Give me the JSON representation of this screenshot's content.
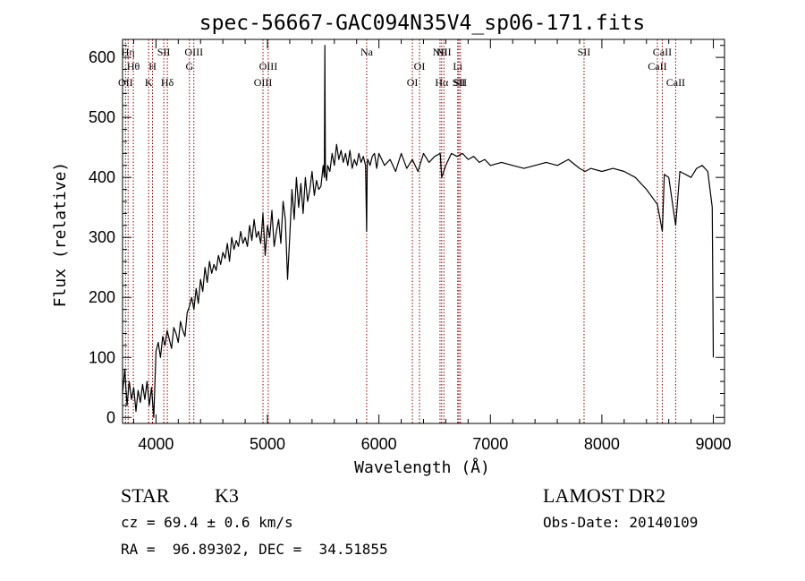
{
  "chart_data": {
    "type": "line",
    "title": "spec-56667-GAC094N35V4_sp06-171.fits",
    "xlabel": "Wavelength (Å)",
    "ylabel": "Flux (relative)",
    "xlim": [
      3700,
      9100
    ],
    "ylim": [
      -10,
      630
    ],
    "xticks": [
      4000,
      5000,
      6000,
      7000,
      8000,
      9000
    ],
    "yticks": [
      0,
      100,
      200,
      300,
      400,
      500,
      600
    ],
    "grid": false,
    "line_color": "#000000",
    "marker_color": "#8b0000",
    "series": [
      {
        "x": [
          3700,
          3720,
          3740,
          3760,
          3780,
          3800,
          3820,
          3840,
          3860,
          3880,
          3900,
          3920,
          3940,
          3960,
          3980,
          4000,
          4020,
          4040,
          4060,
          4080,
          4100,
          4120,
          4140,
          4160,
          4180,
          4200,
          4220,
          4240,
          4260,
          4280,
          4300,
          4320,
          4340,
          4360,
          4380,
          4400,
          4420,
          4440,
          4460,
          4480,
          4500,
          4520,
          4540,
          4560,
          4580,
          4600,
          4620,
          4640,
          4660,
          4680,
          4700,
          4720,
          4740,
          4760,
          4780,
          4800,
          4820,
          4840,
          4860,
          4880,
          4900,
          4920,
          4940,
          4960,
          4980,
          5000,
          5020,
          5040,
          5060,
          5080,
          5100,
          5120,
          5140,
          5160,
          5180,
          5200,
          5220,
          5240,
          5260,
          5280,
          5300,
          5320,
          5340,
          5360,
          5380,
          5400,
          5420,
          5440,
          5460,
          5480,
          5500,
          5510,
          5515,
          5520,
          5530,
          5540,
          5560,
          5580,
          5600,
          5620,
          5640,
          5660,
          5680,
          5700,
          5720,
          5740,
          5760,
          5780,
          5800,
          5820,
          5840,
          5860,
          5880,
          5890,
          5895,
          5900,
          5920,
          5940,
          5960,
          5980,
          6000,
          6050,
          6100,
          6150,
          6200,
          6250,
          6300,
          6350,
          6400,
          6450,
          6500,
          6550,
          6563,
          6600,
          6650,
          6700,
          6750,
          6800,
          6850,
          6900,
          6950,
          7000,
          7100,
          7200,
          7300,
          7400,
          7500,
          7600,
          7700,
          7800,
          7850,
          7900,
          8000,
          8100,
          8200,
          8300,
          8400,
          8498,
          8542,
          8560,
          8600,
          8662,
          8700,
          8750,
          8800,
          8850,
          8900,
          8950,
          8990,
          9000
        ],
        "y": [
          40,
          80,
          20,
          60,
          30,
          50,
          10,
          45,
          25,
          55,
          30,
          60,
          20,
          50,
          0,
          110,
          125,
          100,
          135,
          120,
          145,
          130,
          115,
          150,
          140,
          125,
          160,
          145,
          135,
          175,
          185,
          200,
          180,
          215,
          190,
          230,
          210,
          250,
          225,
          260,
          240,
          255,
          245,
          270,
          255,
          275,
          265,
          290,
          260,
          300,
          280,
          295,
          285,
          310,
          290,
          300,
          285,
          320,
          295,
          330,
          300,
          310,
          290,
          340,
          270,
          320,
          300,
          345,
          285,
          310,
          330,
          290,
          360,
          330,
          230,
          300,
          380,
          330,
          400,
          350,
          390,
          340,
          400,
          360,
          380,
          410,
          370,
          395,
          380,
          385,
          420,
          400,
          620,
          410,
          395,
          420,
          410,
          440,
          420,
          455,
          430,
          445,
          425,
          440,
          420,
          445,
          415,
          430,
          420,
          440,
          425,
          435,
          420,
          310,
          425,
          430,
          420,
          435,
          440,
          415,
          440,
          420,
          430,
          410,
          440,
          415,
          430,
          410,
          440,
          425,
          435,
          440,
          400,
          420,
          440,
          435,
          440,
          430,
          435,
          425,
          430,
          420,
          425,
          420,
          415,
          420,
          425,
          420,
          430,
          415,
          410,
          415,
          410,
          415,
          410,
          400,
          380,
          355,
          310,
          405,
          400,
          320,
          410,
          405,
          400,
          415,
          420,
          410,
          350,
          100
        ]
      }
    ],
    "lines": [
      {
        "x": 3727,
        "label": "OII",
        "row": 3
      },
      {
        "x": 3750,
        "label": "Hη",
        "row": 1
      },
      {
        "x": 3797,
        "label": "Hθ",
        "row": 2
      },
      {
        "x": 3934,
        "label": "K",
        "row": 3
      },
      {
        "x": 3969,
        "label": "H",
        "row": 2
      },
      {
        "x": 4070,
        "label": "SII",
        "row": 1
      },
      {
        "x": 4102,
        "label": "Hδ",
        "row": 3
      },
      {
        "x": 4300,
        "label": "G",
        "row": 2
      },
      {
        "x": 4340,
        "label": "OIII",
        "row": 1
      },
      {
        "x": 4960,
        "label": "OIII",
        "row": 3
      },
      {
        "x": 5007,
        "label": "OIII",
        "row": 2
      },
      {
        "x": 5890,
        "label": "Na",
        "row": 1
      },
      {
        "x": 6300,
        "label": "OI",
        "row": 3
      },
      {
        "x": 6364,
        "label": "OI",
        "row": 2
      },
      {
        "x": 6548,
        "label": "NII",
        "row": 1
      },
      {
        "x": 6563,
        "label": "Hα",
        "row": 3
      },
      {
        "x": 6583,
        "label": "NII",
        "row": 1
      },
      {
        "x": 6707,
        "label": "Li",
        "row": 2
      },
      {
        "x": 6717,
        "label": "SII",
        "row": 3
      },
      {
        "x": 6731,
        "label": "SII",
        "row": 3
      },
      {
        "x": 7840,
        "label": "SII",
        "row": 1
      },
      {
        "x": 8498,
        "label": "CaII",
        "row": 2
      },
      {
        "x": 8542,
        "label": "CaII",
        "row": 1
      },
      {
        "x": 8662,
        "label": "CaII",
        "row": 3
      }
    ]
  },
  "info": {
    "object_class": "STAR",
    "subclass": "K3",
    "survey": "LAMOST DR2",
    "redshift": "cz = 69.4 ± 0.6 km/s",
    "obs_date": "Obs-Date: 20140109",
    "coords": "RA =  96.89302, DEC =  34.51855"
  }
}
